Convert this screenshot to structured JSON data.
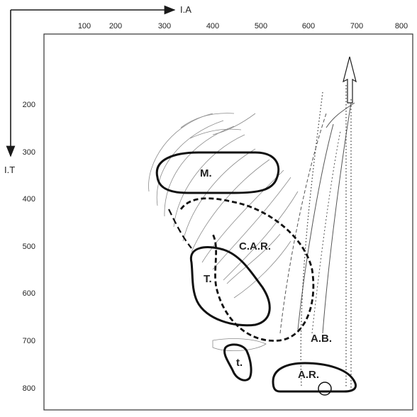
{
  "axes": {
    "x_title": "I.A",
    "y_title": "I.T",
    "x_ticks": [
      "100",
      "200",
      "300",
      "400",
      "500",
      "600",
      "700",
      "800"
    ],
    "y_ticks": [
      "200",
      "300",
      "400",
      "500",
      "600",
      "700",
      "800"
    ]
  },
  "regions": [
    {
      "key": "m",
      "label": "M."
    },
    {
      "key": "car",
      "label": "C.A.R."
    },
    {
      "key": "t_upper",
      "label": "T."
    },
    {
      "key": "t_lower",
      "label": "t."
    },
    {
      "key": "ab",
      "label": "A.B."
    },
    {
      "key": "ar",
      "label": "A.R."
    }
  ],
  "colors": {
    "ink": "#1a1a1a",
    "faint": "#888888",
    "frame": "#333333"
  }
}
